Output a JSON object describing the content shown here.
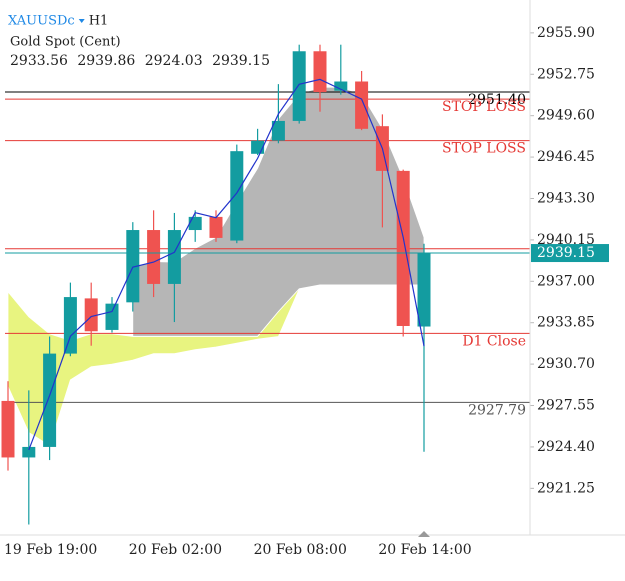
{
  "chart_data": {
    "type": "candlestick",
    "title": "XAUUSDc",
    "timeframe": "H1",
    "subtitle": "Gold Spot (Cent)",
    "categories": [
      "19 Feb 19:00",
      null,
      null,
      null,
      null,
      null,
      "20 Feb 02:00",
      null,
      null,
      null,
      null,
      null,
      "20 Feb 08:00",
      null,
      null,
      null,
      null,
      null,
      "20 Feb 14:00",
      null,
      null
    ],
    "open": [
      2927.9,
      2923.6,
      2924.4,
      2931.5,
      2935.7,
      2933.3,
      2935.4,
      2940.9,
      2936.8,
      2940.9,
      2941.9,
      2940.1,
      2946.7,
      2947.7,
      2949.2,
      2954.5,
      2951.5,
      2952.2,
      2948.8,
      2945.4,
      2933.56
    ],
    "high": [
      2929.4,
      2928.7,
      2932.8,
      2936.9,
      2936.9,
      2935.8,
      2941.5,
      2942.4,
      2942.2,
      2942.4,
      2942.4,
      2947.4,
      2948.6,
      2952.0,
      2955.0,
      2955.0,
      2955.0,
      2953.0,
      2949.7,
      2945.5,
      2939.86
    ],
    "low": [
      2922.6,
      2918.5,
      2923.4,
      2931.3,
      2932.1,
      2933.1,
      2934.7,
      2935.8,
      2933.9,
      2940.0,
      2940.0,
      2939.9,
      2946.6,
      2947.5,
      2949.0,
      2949.9,
      2951.2,
      2948.5,
      2941.1,
      2932.8,
      2924.03
    ],
    "close": [
      2923.6,
      2924.4,
      2931.5,
      2935.8,
      2933.2,
      2935.3,
      2940.9,
      2936.8,
      2940.9,
      2941.9,
      2940.3,
      2946.9,
      2947.7,
      2949.2,
      2954.5,
      2951.4,
      2952.2,
      2948.6,
      2945.4,
      2933.6,
      2939.15
    ],
    "up_color": "#139ca0",
    "down_color": "#ef5350",
    "overlays": [
      {
        "type": "band",
        "color": "#e4f26a",
        "upper": [
          2936.2,
          2934.3,
          2933.0,
          2932.5,
          2933.0,
          2933.0,
          2932.8,
          2932.8,
          2932.8,
          2932.8,
          2932.8,
          2932.8,
          2932.8,
          2934.7,
          2936.5,
          null,
          null,
          null,
          null,
          null,
          null
        ],
        "lower": [
          2929.0,
          2925.5,
          2924.5,
          2929.5,
          2930.5,
          2930.7,
          2931.0,
          2931.5,
          2931.5,
          2931.8,
          2932.0,
          2932.3,
          2932.6,
          2932.8,
          2936.4,
          null,
          null,
          null,
          null,
          null,
          null
        ]
      },
      {
        "type": "band",
        "color": "#a9a9a9",
        "upper": [
          null,
          null,
          null,
          null,
          null,
          null,
          2938.08,
          2938.5,
          2938.46,
          2939.5,
          2940.34,
          2943.0,
          2945.6,
          2949.35,
          2951.23,
          2951.76,
          2951.76,
          2951.23,
          2948.6,
          2944.84,
          2940.34
        ],
        "lower": [
          null,
          null,
          null,
          null,
          null,
          null,
          2932.82,
          2932.82,
          2932.82,
          2932.82,
          2932.82,
          2932.82,
          2932.82,
          2934.7,
          2936.43,
          2936.73,
          2936.73,
          2936.73,
          2936.73,
          2936.73,
          2936.73
        ]
      },
      {
        "type": "line",
        "color": "#2233cc",
        "values": [
          null,
          2924.17,
          2928.31,
          2932.82,
          2934.32,
          2934.7,
          2938.08,
          2938.46,
          2939.21,
          2942.22,
          2941.84,
          2943.72,
          2946.35,
          2949.73,
          2951.99,
          2952.36,
          2951.61,
          2950.86,
          2947.1,
          2940.34,
          2932.07
        ]
      }
    ],
    "levels": [
      {
        "value": 2951.4,
        "label": "2951.40",
        "color": "#000000"
      },
      {
        "value": 2950.86,
        "label": "STOP LOSS",
        "color": "#e53935"
      },
      {
        "value": 2947.7,
        "label": "STOP LOSS",
        "color": "#e53935"
      },
      {
        "value": 2939.48,
        "color": "#e53935"
      },
      {
        "value": 2933.04,
        "label": "D1 Close",
        "color": "#e53935"
      },
      {
        "value": 2927.79,
        "label": "2927.79",
        "color": "#555555"
      }
    ],
    "ylim": [
      2917.7,
      2958.4
    ],
    "yticks": [
      {
        "value": 2955.9,
        "label": "2955.90"
      },
      2952.75,
      {
        "value": 2949.6,
        "label": "2949.60"
      },
      2946.45,
      {
        "value": 2943.3,
        "label": "2943.30"
      },
      2940.15,
      {
        "value": 2937.0,
        "label": "2937.00"
      },
      2933.85,
      {
        "value": 2930.7,
        "label": "2930.70"
      },
      2927.55,
      {
        "value": 2924.4,
        "label": "2924.40"
      },
      2921.25
    ],
    "grid": false
  }
}
